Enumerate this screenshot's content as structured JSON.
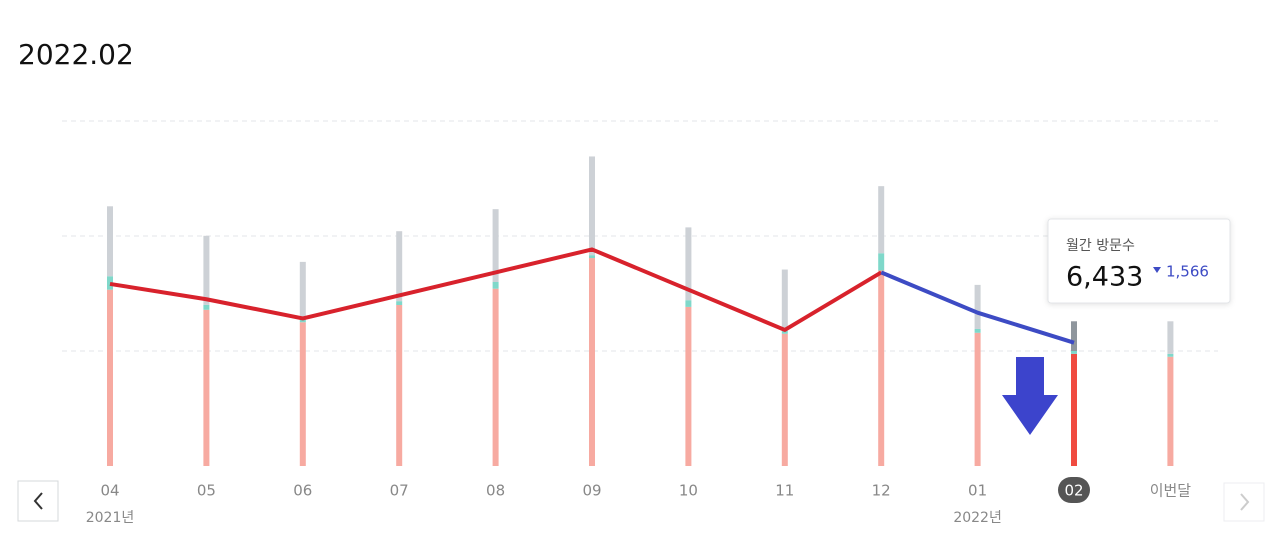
{
  "header": {
    "title": "2022.02"
  },
  "chart_data": {
    "type": "bar",
    "stacked": true,
    "categories": [
      "04",
      "05",
      "06",
      "07",
      "08",
      "09",
      "10",
      "11",
      "12",
      "01",
      "02",
      "이번달"
    ],
    "year_labels": [
      {
        "index": 0,
        "label": "2021년"
      },
      {
        "index": 9,
        "label": "2022년"
      }
    ],
    "selected_index": 10,
    "series": [
      {
        "color": "#f7aaa1",
        "selected_color": "#f04b40",
        "values": [
          9200,
          8150,
          7500,
          8400,
          9250,
          10850,
          8300,
          6900,
          10200,
          6950,
          5850,
          5700
        ]
      },
      {
        "color": "#7fd8ca",
        "selected_color": "#7fd8ca",
        "values": [
          700,
          260,
          150,
          200,
          350,
          150,
          350,
          150,
          900,
          200,
          150,
          150
        ]
      },
      {
        "color": "#cdd1d6",
        "selected_color": "#8f969d",
        "values": [
          3650,
          3600,
          3000,
          3650,
          3800,
          5150,
          3800,
          3200,
          3500,
          2300,
          1550,
          1700
        ]
      }
    ],
    "line": {
      "color": "#d8222c",
      "recent_color": "#3d4bc4",
      "recent_from_index": 8,
      "values": [
        9500,
        8700,
        7700,
        8900,
        10100,
        11300,
        9200,
        7100,
        10100,
        7999,
        6433,
        null
      ],
      "value_labels": [
        null,
        null,
        null,
        null,
        null,
        null,
        null,
        null,
        null,
        null,
        "6,433",
        null
      ]
    },
    "tooltip": {
      "label": "월간 방문수",
      "change": -1566,
      "change_label": "1,566"
    },
    "ylim": [
      0,
      18000
    ],
    "yticks": [
      6000,
      12000,
      18000
    ],
    "grid": true
  }
}
